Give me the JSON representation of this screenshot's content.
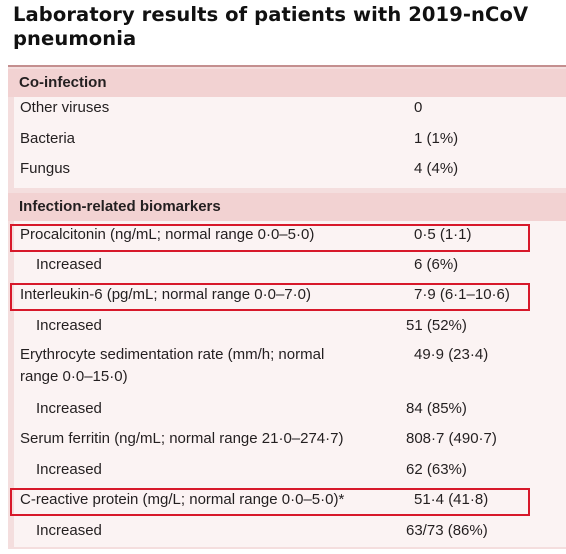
{
  "title": "Laboratory results of patients with 2019-nCoV pneumonia",
  "sections": [
    {
      "header": "Co-infection",
      "rows": [
        {
          "label": "Other viruses",
          "value": "0"
        },
        {
          "label": "Bacteria",
          "value": "1 (1%)"
        },
        {
          "label": "Fungus",
          "value": "4 (4%)"
        }
      ]
    },
    {
      "header": "Infection-related biomarkers",
      "rows": [
        {
          "label": "Procalcitonin (ng/mL; normal range 0·0–5·0)",
          "value": "0·5 (1·1)"
        },
        {
          "label": "Increased",
          "value": "6 (6%)"
        },
        {
          "label": "Interleukin-6 (pg/mL; normal range 0·0–7·0)",
          "value": "7·9 (6·1–10·6)"
        },
        {
          "label": "Increased",
          "value": "51 (52%)"
        },
        {
          "label_line1": "Erythrocyte sedimentation rate (mm/h; normal",
          "label_line2": "range 0·0–15·0)",
          "value": "49·9 (23·4)"
        },
        {
          "label": "Increased",
          "value": "84 (85%)"
        },
        {
          "label": "Serum ferritin (ng/mL; normal range 21·0–274·7)",
          "value": "808·7 (490·7)"
        },
        {
          "label": "Increased",
          "value": "62 (63%)"
        },
        {
          "label": "C-reactive protein (mg/L; normal range 0·0–5·0)*",
          "value": "51·4 (41·8)"
        },
        {
          "label": "Increased",
          "value": "63/73 (86%)"
        }
      ]
    }
  ],
  "highlight_color": "#d7182a"
}
